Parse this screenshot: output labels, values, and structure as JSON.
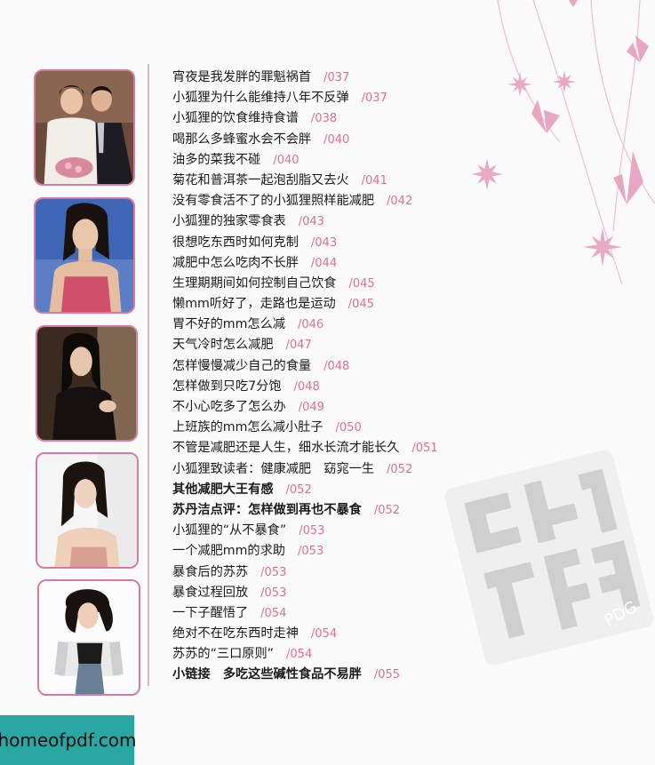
{
  "toc": [
    {
      "title": "宵夜是我发胖的罪魁祸首",
      "page": "/037",
      "bold": false
    },
    {
      "title": "小狐狸为什么能维持八年不反弹",
      "page": "/037",
      "bold": false
    },
    {
      "title": "小狐狸的饮食维持食谱",
      "page": "/038",
      "bold": false
    },
    {
      "title": "喝那么多蜂蜜水会不会胖",
      "page": "/040",
      "bold": false
    },
    {
      "title": "油多的菜我不碰",
      "page": "/040",
      "bold": false
    },
    {
      "title": "菊花和普洱茶一起泡刮脂又去火",
      "page": "/041",
      "bold": false
    },
    {
      "title": "没有零食活不了的小狐狸照样能减肥",
      "page": "/042",
      "bold": false
    },
    {
      "title": "小狐狸的独家零食表",
      "page": "/043",
      "bold": false
    },
    {
      "title": "很想吃东西时如何克制",
      "page": "/043",
      "bold": false
    },
    {
      "title": "减肥中怎么吃肉不长胖",
      "page": "/044",
      "bold": false
    },
    {
      "title": "生理期期间如何控制自己饮食",
      "page": "/045",
      "bold": false
    },
    {
      "title": "懒mm听好了，走路也是运动",
      "page": "/045",
      "bold": false
    },
    {
      "title": "胃不好的mm怎么减",
      "page": "/046",
      "bold": false
    },
    {
      "title": "天气冷时怎么减肥",
      "page": "/047",
      "bold": false
    },
    {
      "title": "怎样慢慢减少自己的食量",
      "page": "/048",
      "bold": false
    },
    {
      "title": "怎样做到只吃7分饱",
      "page": "/048",
      "bold": false
    },
    {
      "title": "不小心吃多了怎么办",
      "page": "/049",
      "bold": false
    },
    {
      "title": "上班族的mm怎么减小肚子",
      "page": "/050",
      "bold": false
    },
    {
      "title": "不管是减肥还是人生，细水长流才能长久",
      "page": "/051",
      "bold": false
    },
    {
      "title": "小狐狸致读者：健康减肥　窈窕一生",
      "page": "/052",
      "bold": false
    },
    {
      "title": "其他减肥大王有感",
      "page": "/052",
      "bold": true
    },
    {
      "title": "苏丹洁点评：怎样做到再也不暴食",
      "page": "/052",
      "bold": true
    },
    {
      "title": "小狐狸的“从不暴食”",
      "page": "/053",
      "bold": false
    },
    {
      "title": "一个减肥mm的求助",
      "page": "/053",
      "bold": false
    },
    {
      "title": "暴食后的苏苏",
      "page": "/053",
      "bold": false
    },
    {
      "title": "暴食过程回放",
      "page": "/053",
      "bold": false
    },
    {
      "title": "一下子醒悟了",
      "page": "/054",
      "bold": false
    },
    {
      "title": "绝对不在吃东西时走神",
      "page": "/054",
      "bold": false
    },
    {
      "title": "苏苏的“三口原则”",
      "page": "/054",
      "bold": false
    },
    {
      "title": "小链接　多吃这些碱性食品不易胖",
      "page": "/055",
      "bold": true
    }
  ],
  "seal_mark": "PDG",
  "watermark": "homeofpdf.com",
  "colors": {
    "accent": "#e1708f",
    "frame": "#d67aa0",
    "badge": "#2ba7a3"
  }
}
